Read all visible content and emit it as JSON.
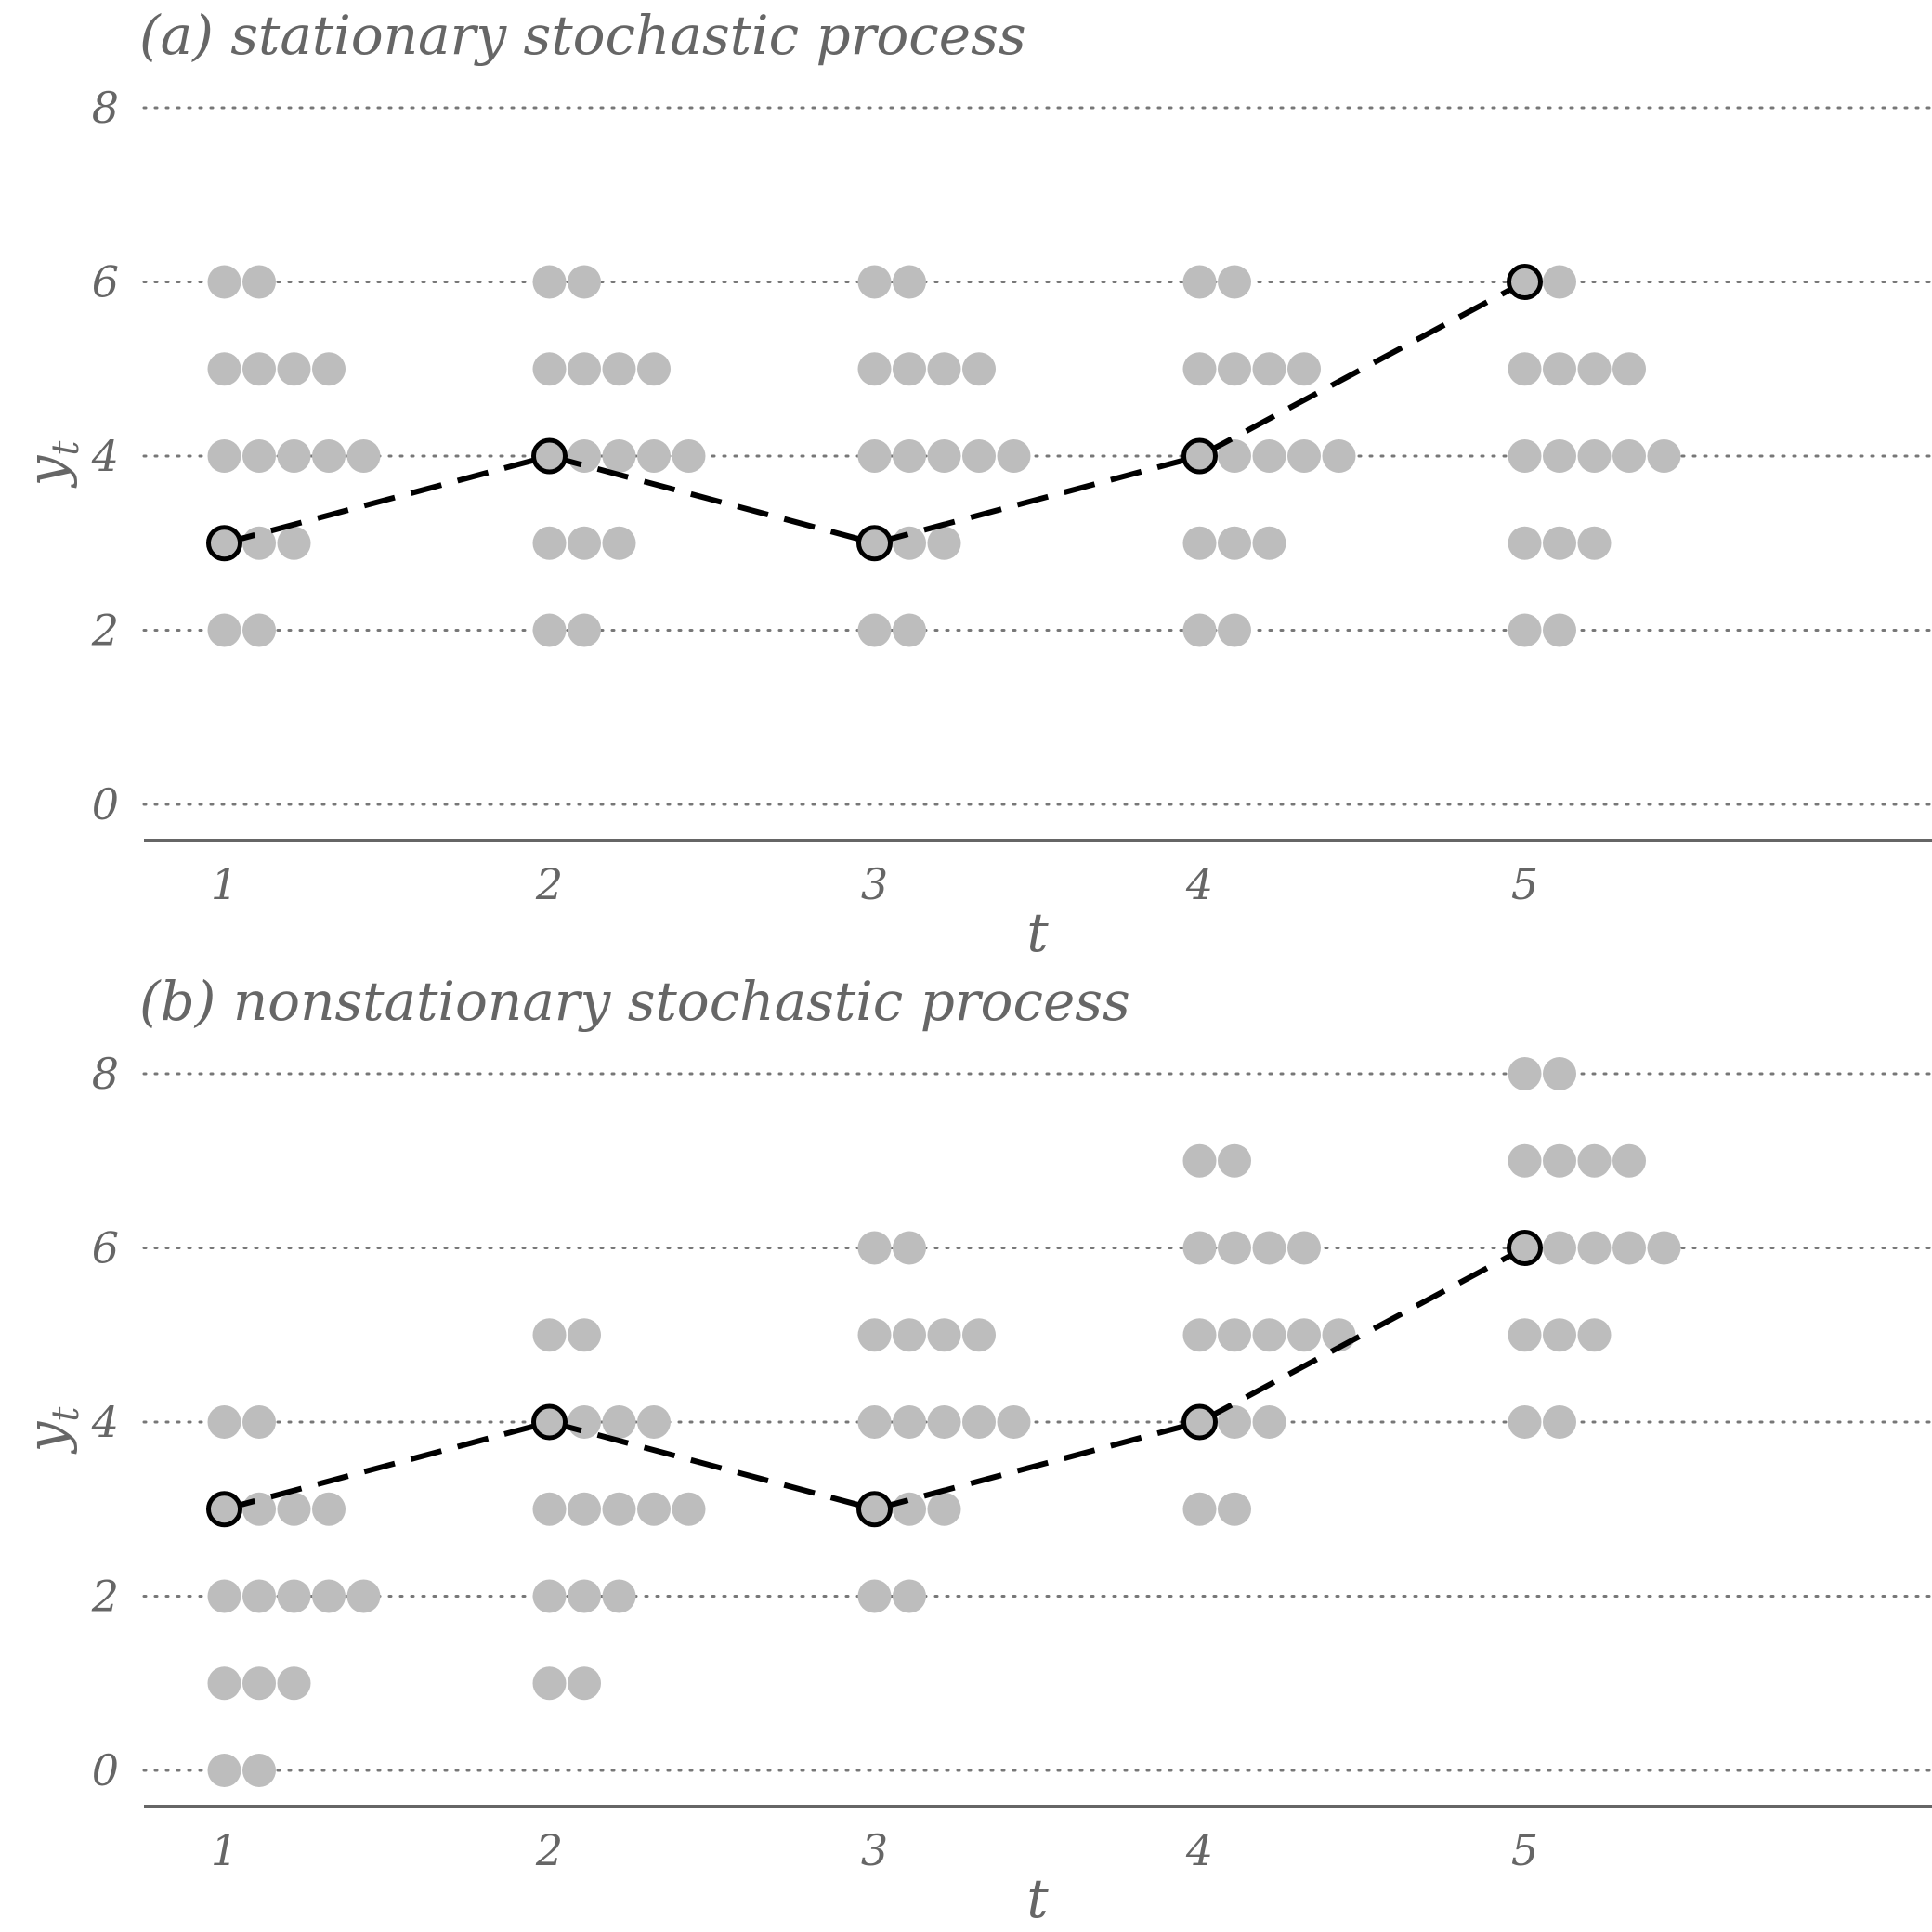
{
  "chart_data": [
    {
      "type": "scatter",
      "title": "(a) stationary stochastic process",
      "xlabel": "t",
      "ylabel": "y_t",
      "ylabel_base": "y",
      "ylabel_sub": "t",
      "x_ticks": [
        "1",
        "2",
        "3",
        "4",
        "5"
      ],
      "y_ticks": [
        "0",
        "2",
        "4",
        "6",
        "8"
      ],
      "ylim": [
        0,
        8
      ],
      "grid": "horizontal dotted",
      "distribution": [
        {
          "t": 1,
          "counts": [
            {
              "y": 2,
              "n": 2
            },
            {
              "y": 3,
              "n": 3
            },
            {
              "y": 4,
              "n": 5
            },
            {
              "y": 5,
              "n": 4
            },
            {
              "y": 6,
              "n": 2
            }
          ]
        },
        {
          "t": 2,
          "counts": [
            {
              "y": 2,
              "n": 2
            },
            {
              "y": 3,
              "n": 3
            },
            {
              "y": 4,
              "n": 5
            },
            {
              "y": 5,
              "n": 4
            },
            {
              "y": 6,
              "n": 2
            }
          ]
        },
        {
          "t": 3,
          "counts": [
            {
              "y": 2,
              "n": 2
            },
            {
              "y": 3,
              "n": 3
            },
            {
              "y": 4,
              "n": 5
            },
            {
              "y": 5,
              "n": 4
            },
            {
              "y": 6,
              "n": 2
            }
          ]
        },
        {
          "t": 4,
          "counts": [
            {
              "y": 2,
              "n": 2
            },
            {
              "y": 3,
              "n": 3
            },
            {
              "y": 4,
              "n": 5
            },
            {
              "y": 5,
              "n": 4
            },
            {
              "y": 6,
              "n": 2
            }
          ]
        },
        {
          "t": 5,
          "counts": [
            {
              "y": 2,
              "n": 2
            },
            {
              "y": 3,
              "n": 3
            },
            {
              "y": 4,
              "n": 5
            },
            {
              "y": 5,
              "n": 4
            },
            {
              "y": 6,
              "n": 2
            }
          ]
        }
      ],
      "path": [
        {
          "t": 1,
          "y": 3
        },
        {
          "t": 2,
          "y": 4
        },
        {
          "t": 3,
          "y": 3
        },
        {
          "t": 4,
          "y": 4
        },
        {
          "t": 5,
          "y": 6
        }
      ],
      "colors": {
        "dots": "#bdbdbd",
        "path": "#000000",
        "text": "#666666",
        "grid": "#777777"
      }
    },
    {
      "type": "scatter",
      "title": "(b) nonstationary stochastic process",
      "xlabel": "t",
      "ylabel": "y_t",
      "ylabel_base": "y",
      "ylabel_sub": "t",
      "x_ticks": [
        "1",
        "2",
        "3",
        "4",
        "5"
      ],
      "y_ticks": [
        "0",
        "2",
        "4",
        "6",
        "8"
      ],
      "ylim": [
        0,
        8
      ],
      "grid": "horizontal dotted",
      "distribution": [
        {
          "t": 1,
          "counts": [
            {
              "y": 0,
              "n": 2
            },
            {
              "y": 1,
              "n": 3
            },
            {
              "y": 2,
              "n": 5
            },
            {
              "y": 3,
              "n": 4
            },
            {
              "y": 4,
              "n": 2
            }
          ]
        },
        {
          "t": 2,
          "counts": [
            {
              "y": 1,
              "n": 2
            },
            {
              "y": 2,
              "n": 3
            },
            {
              "y": 3,
              "n": 5
            },
            {
              "y": 4,
              "n": 4
            },
            {
              "y": 5,
              "n": 2
            }
          ]
        },
        {
          "t": 3,
          "counts": [
            {
              "y": 2,
              "n": 2
            },
            {
              "y": 3,
              "n": 3
            },
            {
              "y": 4,
              "n": 5
            },
            {
              "y": 5,
              "n": 4
            },
            {
              "y": 6,
              "n": 2
            }
          ]
        },
        {
          "t": 4,
          "counts": [
            {
              "y": 3,
              "n": 2
            },
            {
              "y": 4,
              "n": 3
            },
            {
              "y": 5,
              "n": 5
            },
            {
              "y": 6,
              "n": 4
            },
            {
              "y": 7,
              "n": 2
            }
          ]
        },
        {
          "t": 5,
          "counts": [
            {
              "y": 4,
              "n": 2
            },
            {
              "y": 5,
              "n": 3
            },
            {
              "y": 6,
              "n": 5
            },
            {
              "y": 7,
              "n": 4
            },
            {
              "y": 8,
              "n": 2
            }
          ]
        }
      ],
      "path": [
        {
          "t": 1,
          "y": 3
        },
        {
          "t": 2,
          "y": 4
        },
        {
          "t": 3,
          "y": 3
        },
        {
          "t": 4,
          "y": 4
        },
        {
          "t": 5,
          "y": 6
        }
      ],
      "colors": {
        "dots": "#bdbdbd",
        "path": "#000000",
        "text": "#666666",
        "grid": "#777777"
      }
    }
  ]
}
